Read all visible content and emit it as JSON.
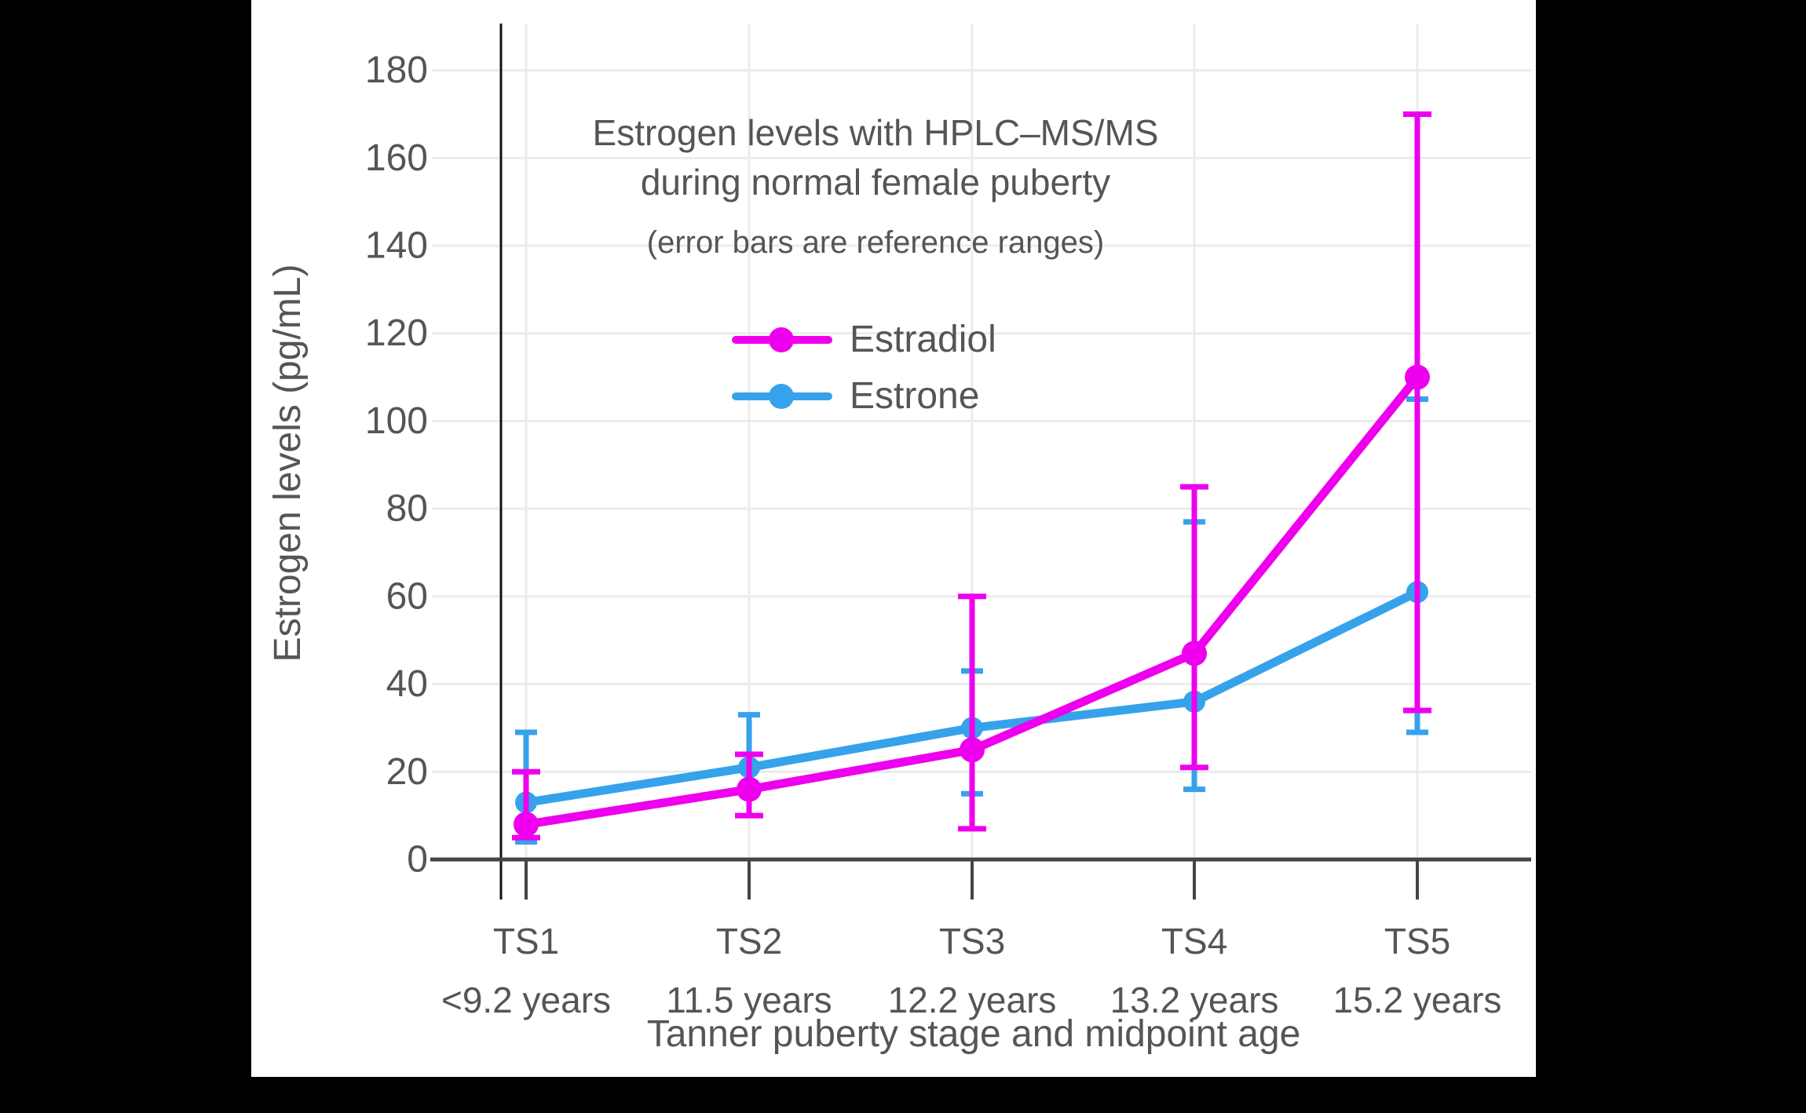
{
  "chart_data": {
    "type": "line",
    "title_line1": "Estrogen levels with HPLC–MS/MS",
    "title_line2": "during normal female puberty",
    "subtitle": "(error bars are reference ranges)",
    "ylabel": "Estrogen levels (pg/mL)",
    "xlabel": "Tanner puberty stage and midpoint age",
    "categories": [
      "TS1",
      "TS2",
      "TS3",
      "TS4",
      "TS5"
    ],
    "category_sublabels": [
      "<9.2 years",
      "11.5 years",
      "12.2 years",
      "13.2 years",
      "15.2 years"
    ],
    "y_ticks": [
      0,
      20,
      40,
      60,
      80,
      100,
      120,
      140,
      160,
      180
    ],
    "ylim": [
      0,
      190
    ],
    "grid": true,
    "legend_position": "inside-upper-left",
    "error_bars_note": "error bars are reference ranges",
    "series": [
      {
        "name": "Estradiol",
        "color": "#EE00EE",
        "values": [
          8,
          16,
          25,
          47,
          110
        ],
        "error_low": [
          5,
          10,
          7,
          21,
          34
        ],
        "error_high": [
          20,
          24,
          60,
          85,
          170
        ]
      },
      {
        "name": "Estrone",
        "color": "#36A2EB",
        "values": [
          13,
          21,
          30,
          36,
          61
        ],
        "error_low": [
          4,
          16,
          15,
          16,
          29
        ],
        "error_high": [
          29,
          33,
          43,
          77,
          105
        ]
      }
    ],
    "colors": {
      "text": "#555555",
      "grid": "#ECECEC",
      "x_axis": "#444444",
      "y_axis": "#111111",
      "panel_bg": "#FFFFFF",
      "frame_bg": "#000000"
    }
  }
}
